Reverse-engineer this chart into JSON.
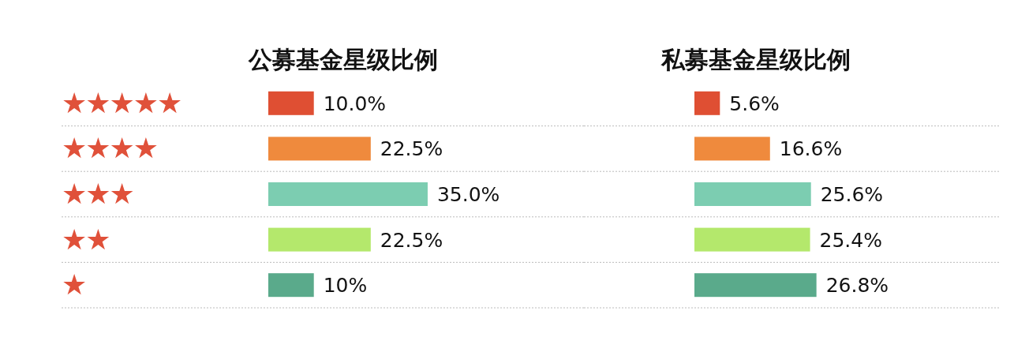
{
  "chart_data": [
    {
      "type": "bar",
      "orientation": "horizontal",
      "title": "公募基金星级比例",
      "categories": [
        "★★★★★",
        "★★★★",
        "★★★",
        "★★",
        "★"
      ],
      "values": [
        10.0,
        22.5,
        35.0,
        22.5,
        10
      ],
      "colors": [
        "#df4f33",
        "#ef8a3d",
        "#7ccdb1",
        "#b4e86c",
        "#5aaa8b"
      ],
      "value_labels": [
        "10.0%",
        "22.5%",
        "35.0%",
        "22.5%",
        "10%"
      ],
      "tick_labels": "y",
      "grid": "y"
    },
    {
      "type": "bar",
      "orientation": "horizontal",
      "title": "私募基金星级比例",
      "categories": [
        null,
        null,
        null,
        null,
        null
      ],
      "values": [
        5.6,
        16.6,
        25.6,
        25.4,
        26.8
      ],
      "colors": [
        "#df4f33",
        "#ef8a3d",
        "#7ccdb1",
        "#b4e86c",
        "#5aaa8b"
      ],
      "value_labels": [
        "5.6%",
        "16.6%",
        "25.6%",
        "25.4%",
        "26.8%"
      ],
      "grid": "y"
    }
  ]
}
